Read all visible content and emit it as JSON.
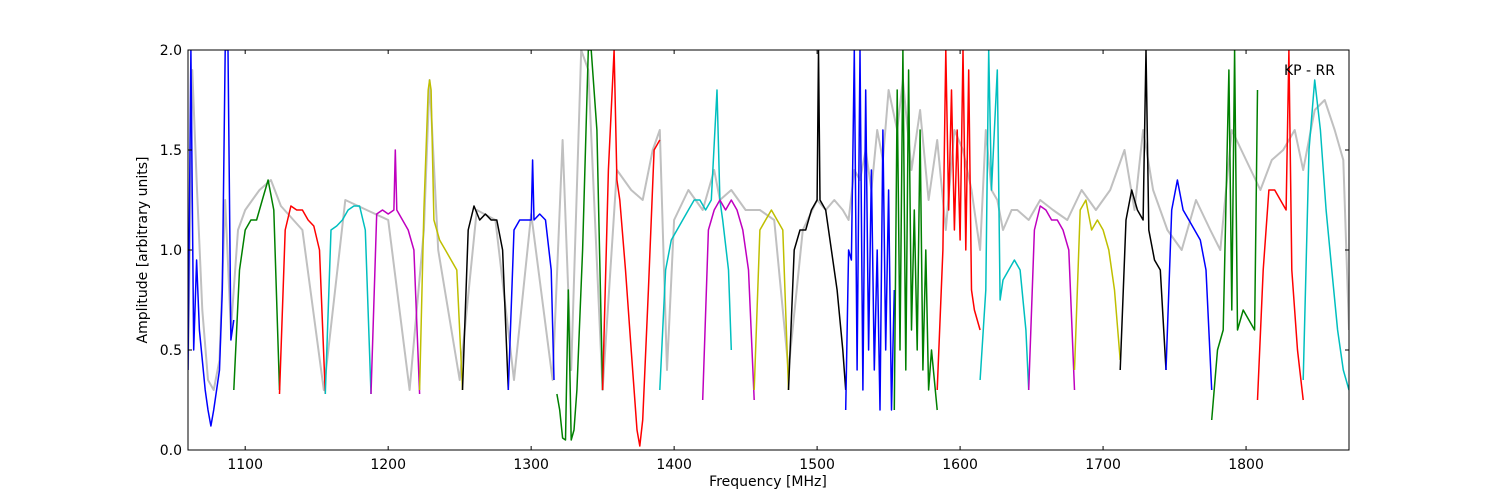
{
  "chart_data": {
    "type": "line",
    "title": "",
    "xlabel": "Frequency [MHz]",
    "ylabel": "Amplitude [arbitrary units]",
    "annotation": "KP - RR",
    "xlim": [
      1060,
      1872
    ],
    "ylim": [
      0.0,
      2.0
    ],
    "xticks": [
      1100,
      1200,
      1300,
      1400,
      1500,
      1600,
      1700,
      1800
    ],
    "xtick_labels": [
      "1100",
      "1200",
      "1300",
      "1400",
      "1500",
      "1600",
      "1700",
      "1800"
    ],
    "yticks": [
      0.0,
      0.5,
      1.0,
      1.5,
      2.0
    ],
    "ytick_labels": [
      "0.0",
      "0.5",
      "1.0",
      "1.5",
      "2.0"
    ],
    "grid": false,
    "background": {
      "color": "#c0c0c0",
      "x": [
        1060,
        1063,
        1066,
        1070,
        1074,
        1078,
        1082,
        1086,
        1090,
        1095,
        1100,
        1105,
        1110,
        1118,
        1125,
        1140,
        1155,
        1170,
        1185,
        1200,
        1215,
        1225,
        1229,
        1235,
        1250,
        1262,
        1275,
        1288,
        1300,
        1315,
        1322,
        1328,
        1335,
        1340,
        1350,
        1360,
        1370,
        1378,
        1385,
        1390,
        1395,
        1400,
        1410,
        1420,
        1428,
        1432,
        1440,
        1450,
        1460,
        1470,
        1480,
        1490,
        1500,
        1506,
        1512,
        1518,
        1522,
        1526,
        1530,
        1534,
        1538,
        1542,
        1546,
        1550,
        1556,
        1560,
        1566,
        1572,
        1578,
        1584,
        1590,
        1596,
        1602,
        1608,
        1614,
        1618,
        1622,
        1626,
        1630,
        1636,
        1640,
        1648,
        1656,
        1665,
        1675,
        1685,
        1695,
        1705,
        1715,
        1722,
        1728,
        1735,
        1745,
        1755,
        1765,
        1775,
        1782,
        1790,
        1800,
        1810,
        1818,
        1826,
        1834,
        1840,
        1848,
        1855,
        1862,
        1868,
        1872
      ],
      "y": [
        0.4,
        1.9,
        1.35,
        0.7,
        0.35,
        0.3,
        0.45,
        1.25,
        0.6,
        1.1,
        1.2,
        1.25,
        1.3,
        1.35,
        1.22,
        1.1,
        0.3,
        1.25,
        1.2,
        1.15,
        0.3,
        1.1,
        1.85,
        1.0,
        0.35,
        1.2,
        1.15,
        0.35,
        1.18,
        0.35,
        1.55,
        0.4,
        2.0,
        1.9,
        0.3,
        1.4,
        1.3,
        1.25,
        1.5,
        1.6,
        0.4,
        1.15,
        1.3,
        1.2,
        1.4,
        1.25,
        1.3,
        1.2,
        1.2,
        1.15,
        0.4,
        1.1,
        1.25,
        1.2,
        1.25,
        1.2,
        1.15,
        1.4,
        1.35,
        1.5,
        1.3,
        1.6,
        1.45,
        1.8,
        1.6,
        1.85,
        1.4,
        1.7,
        1.25,
        1.55,
        1.1,
        1.6,
        1.5,
        1.3,
        1.0,
        1.6,
        1.3,
        1.25,
        1.1,
        1.2,
        1.2,
        1.15,
        1.25,
        1.2,
        1.15,
        1.3,
        1.2,
        1.3,
        1.5,
        1.2,
        1.6,
        1.3,
        1.1,
        1.0,
        1.25,
        1.1,
        1.0,
        1.6,
        1.45,
        1.3,
        1.45,
        1.5,
        1.6,
        1.4,
        1.7,
        1.75,
        1.6,
        1.45,
        0.6
      ]
    },
    "series": [
      {
        "color": "#0000ff",
        "x": [
          1060,
          1062,
          1064,
          1066,
          1068,
          1070,
          1072,
          1074,
          1076,
          1078,
          1080,
          1082,
          1084,
          1086,
          1088,
          1090,
          1092
        ],
        "y": [
          0.4,
          2.0,
          0.5,
          0.95,
          0.6,
          0.45,
          0.3,
          0.2,
          0.12,
          0.2,
          0.3,
          0.4,
          0.8,
          2.0,
          2.0,
          0.55,
          0.65
        ]
      },
      {
        "color": "#008000",
        "x": [
          1092,
          1096,
          1100,
          1104,
          1108,
          1112,
          1116,
          1120,
          1124
        ],
        "y": [
          0.3,
          0.9,
          1.1,
          1.15,
          1.15,
          1.25,
          1.35,
          1.2,
          0.3
        ]
      },
      {
        "color": "#ff0000",
        "x": [
          1124,
          1128,
          1132,
          1136,
          1140,
          1144,
          1148,
          1152,
          1156
        ],
        "y": [
          0.28,
          1.1,
          1.22,
          1.2,
          1.2,
          1.15,
          1.12,
          1.0,
          0.28
        ]
      },
      {
        "color": "#00bfbf",
        "x": [
          1156,
          1160,
          1164,
          1168,
          1172,
          1176,
          1180,
          1184,
          1188
        ],
        "y": [
          0.28,
          1.1,
          1.12,
          1.15,
          1.2,
          1.22,
          1.22,
          1.1,
          0.28
        ]
      },
      {
        "color": "#bf00bf",
        "x": [
          1188,
          1192,
          1196,
          1200,
          1204,
          1205,
          1206,
          1210,
          1214,
          1218,
          1222
        ],
        "y": [
          0.28,
          1.18,
          1.2,
          1.18,
          1.2,
          1.5,
          1.2,
          1.15,
          1.1,
          1.0,
          0.28
        ]
      },
      {
        "color": "#bfbf00",
        "x": [
          1222,
          1225,
          1228,
          1229,
          1230,
          1232,
          1236,
          1240,
          1244,
          1248,
          1252
        ],
        "y": [
          0.3,
          1.2,
          1.8,
          1.85,
          1.8,
          1.15,
          1.05,
          1.0,
          0.95,
          0.9,
          0.3
        ]
      },
      {
        "color": "#000000",
        "x": [
          1252,
          1256,
          1260,
          1264,
          1268,
          1272,
          1276,
          1280,
          1284
        ],
        "y": [
          0.3,
          1.1,
          1.22,
          1.15,
          1.18,
          1.15,
          1.15,
          1.0,
          0.3
        ]
      },
      {
        "color": "#0000ff",
        "x": [
          1284,
          1288,
          1292,
          1296,
          1300,
          1301,
          1302,
          1306,
          1310,
          1314,
          1316
        ],
        "y": [
          0.3,
          1.1,
          1.15,
          1.15,
          1.15,
          1.45,
          1.15,
          1.18,
          1.15,
          0.9,
          0.35
        ]
      },
      {
        "color": "#008000",
        "x": [
          1318,
          1320,
          1322,
          1324,
          1326,
          1328,
          1330,
          1332,
          1336,
          1340,
          1342,
          1346,
          1350
        ],
        "y": [
          0.28,
          0.2,
          0.06,
          0.05,
          0.8,
          0.05,
          0.1,
          0.3,
          1.0,
          2.0,
          2.0,
          1.6,
          0.3
        ]
      },
      {
        "color": "#ff0000",
        "x": [
          1350,
          1354,
          1358,
          1360,
          1362,
          1366,
          1370,
          1374,
          1376,
          1378,
          1382,
          1386,
          1390
        ],
        "y": [
          0.3,
          1.4,
          2.0,
          1.35,
          1.25,
          0.9,
          0.5,
          0.1,
          0.02,
          0.15,
          0.8,
          1.5,
          1.55
        ]
      },
      {
        "color": "#00bfbf",
        "x": [
          1390,
          1394,
          1398,
          1402,
          1406,
          1410,
          1414,
          1418,
          1422,
          1426,
          1430,
          1432,
          1434,
          1438,
          1440
        ],
        "y": [
          0.3,
          0.9,
          1.05,
          1.1,
          1.15,
          1.2,
          1.25,
          1.25,
          1.2,
          1.25,
          1.8,
          1.25,
          1.15,
          0.9,
          0.5
        ]
      },
      {
        "color": "#bf00bf",
        "x": [
          1420,
          1424,
          1428,
          1432,
          1436,
          1440,
          1444,
          1448,
          1452,
          1456
        ],
        "y": [
          0.25,
          1.1,
          1.2,
          1.25,
          1.2,
          1.25,
          1.2,
          1.1,
          0.9,
          0.25
        ]
      },
      {
        "color": "#bfbf00",
        "x": [
          1456,
          1460,
          1464,
          1468,
          1472,
          1476,
          1480
        ],
        "y": [
          0.3,
          1.1,
          1.15,
          1.2,
          1.15,
          1.1,
          0.3
        ]
      },
      {
        "color": "#000000",
        "x": [
          1480,
          1484,
          1488,
          1492,
          1496,
          1500,
          1501,
          1502,
          1506,
          1510,
          1514,
          1518,
          1520
        ],
        "y": [
          0.3,
          1.0,
          1.1,
          1.1,
          1.2,
          1.25,
          2.0,
          1.25,
          1.2,
          1.0,
          0.8,
          0.5,
          0.3
        ]
      },
      {
        "color": "#0000ff",
        "x": [
          1520,
          1522,
          1524,
          1526,
          1528,
          1530,
          1532,
          1534,
          1536,
          1538,
          1540,
          1542,
          1544,
          1546,
          1548,
          1550,
          1552,
          1554
        ],
        "y": [
          0.2,
          1.0,
          0.95,
          2.0,
          0.4,
          2.0,
          0.3,
          1.8,
          0.5,
          1.4,
          0.4,
          1.0,
          0.2,
          1.6,
          0.5,
          1.3,
          0.2,
          0.8
        ]
      },
      {
        "color": "#008000",
        "x": [
          1554,
          1556,
          1558,
          1560,
          1562,
          1564,
          1566,
          1568,
          1570,
          1572,
          1574,
          1576,
          1578,
          1580,
          1584
        ],
        "y": [
          0.2,
          1.8,
          0.5,
          2.0,
          0.4,
          1.9,
          0.6,
          1.2,
          0.5,
          1.6,
          0.4,
          1.0,
          0.3,
          0.5,
          0.2
        ]
      },
      {
        "color": "#ff0000",
        "x": [
          1584,
          1588,
          1590,
          1592,
          1594,
          1596,
          1598,
          1600,
          1602,
          1604,
          1606,
          1608,
          1610,
          1614
        ],
        "y": [
          0.3,
          1.0,
          2.0,
          1.2,
          1.8,
          1.1,
          1.6,
          1.05,
          2.0,
          1.0,
          1.9,
          0.8,
          0.7,
          0.6
        ]
      },
      {
        "color": "#00bfbf",
        "x": [
          1614,
          1618,
          1620,
          1622,
          1624,
          1626,
          1628,
          1630,
          1634,
          1638,
          1642,
          1646,
          1648
        ],
        "y": [
          0.35,
          0.8,
          2.0,
          1.3,
          1.6,
          1.9,
          0.75,
          0.85,
          0.9,
          0.95,
          0.9,
          0.6,
          0.3
        ]
      },
      {
        "color": "#bf00bf",
        "x": [
          1648,
          1652,
          1656,
          1660,
          1664,
          1668,
          1672,
          1676,
          1680
        ],
        "y": [
          0.3,
          1.1,
          1.22,
          1.2,
          1.15,
          1.15,
          1.1,
          1.0,
          0.3
        ]
      },
      {
        "color": "#bfbf00",
        "x": [
          1680,
          1684,
          1688,
          1692,
          1696,
          1700,
          1704,
          1708,
          1712
        ],
        "y": [
          0.4,
          1.2,
          1.25,
          1.1,
          1.15,
          1.1,
          1.0,
          0.8,
          0.45
        ]
      },
      {
        "color": "#000000",
        "x": [
          1712,
          1716,
          1720,
          1724,
          1728,
          1730,
          1732,
          1736,
          1740,
          1744
        ],
        "y": [
          0.4,
          1.15,
          1.3,
          1.2,
          1.15,
          2.0,
          1.1,
          0.95,
          0.9,
          0.4
        ]
      },
      {
        "color": "#0000ff",
        "x": [
          1744,
          1748,
          1752,
          1756,
          1760,
          1764,
          1768,
          1772,
          1776
        ],
        "y": [
          0.4,
          1.2,
          1.35,
          1.2,
          1.15,
          1.1,
          1.05,
          0.9,
          0.3
        ]
      },
      {
        "color": "#008000",
        "x": [
          1776,
          1780,
          1784,
          1788,
          1790,
          1792,
          1794,
          1798,
          1802,
          1806,
          1808
        ],
        "y": [
          0.15,
          0.5,
          0.6,
          1.9,
          0.7,
          2.0,
          0.6,
          0.7,
          0.65,
          0.6,
          1.8
        ]
      },
      {
        "color": "#ff0000",
        "x": [
          1808,
          1812,
          1816,
          1820,
          1824,
          1828,
          1830,
          1832,
          1836,
          1840
        ],
        "y": [
          0.25,
          0.9,
          1.3,
          1.3,
          1.25,
          1.2,
          2.0,
          0.9,
          0.5,
          0.25
        ]
      },
      {
        "color": "#00bfbf",
        "x": [
          1840,
          1844,
          1848,
          1852,
          1856,
          1860,
          1864,
          1868,
          1872
        ],
        "y": [
          0.35,
          1.5,
          1.85,
          1.6,
          1.2,
          0.9,
          0.6,
          0.4,
          0.3
        ]
      }
    ]
  }
}
